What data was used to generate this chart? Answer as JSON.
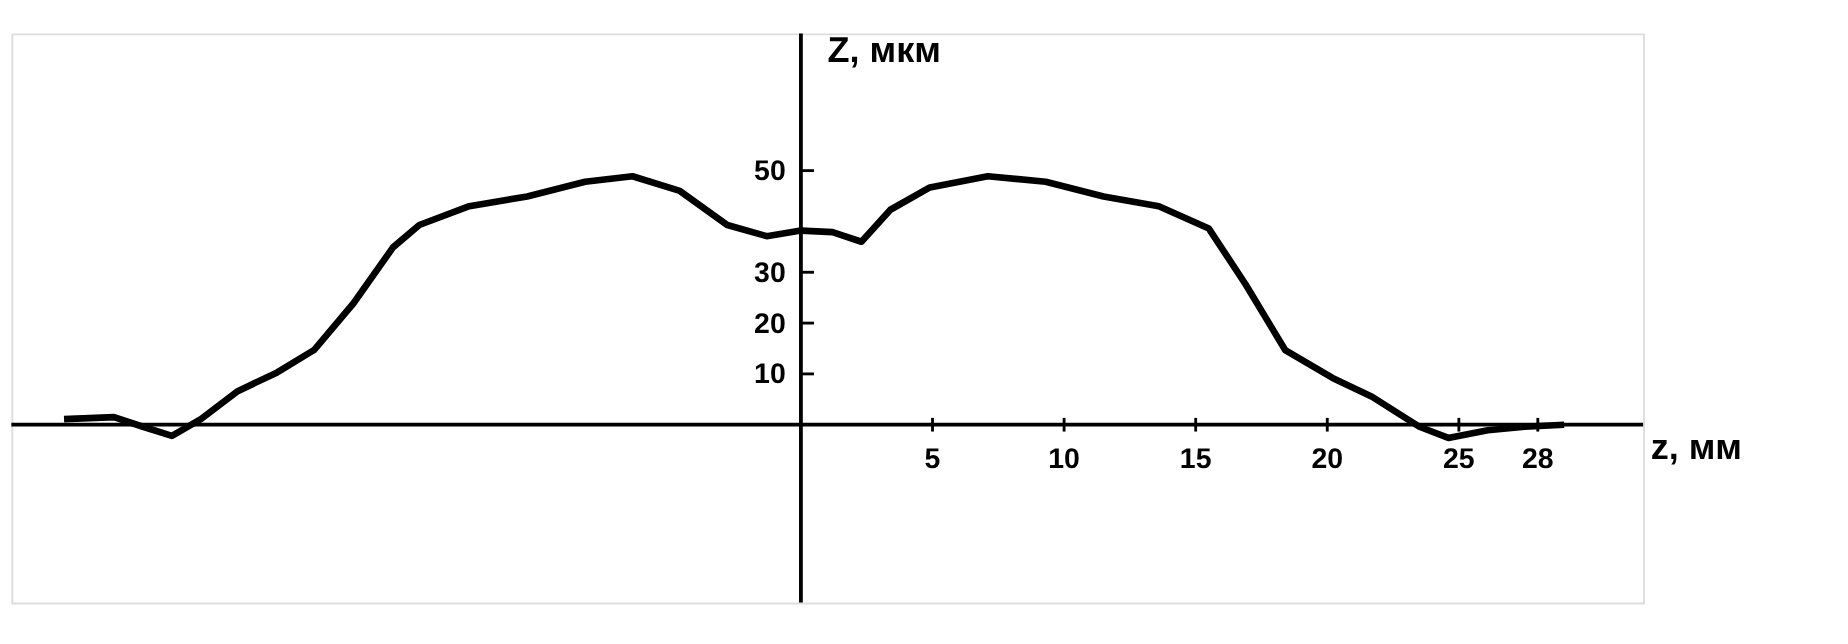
{
  "chart_data": {
    "type": "line",
    "xlabel": "z, мм",
    "ylabel": "Z, мкм",
    "xlim": [
      -30,
      32
    ],
    "ylim": [
      -35,
      77
    ],
    "xticks": [
      5,
      10,
      15,
      20,
      25,
      28
    ],
    "yticks": [
      10,
      20,
      30,
      50
    ],
    "grid": false,
    "marker": "none",
    "line_style": "solid",
    "series": [
      {
        "color": "#000000",
        "x": [
          -28.0,
          -26.1,
          -25.0,
          -23.9,
          -22.8,
          -21.4,
          -19.9,
          -18.5,
          -17.0,
          -15.5,
          -14.5,
          -12.6,
          -10.4,
          -8.2,
          -6.4,
          -4.6,
          -2.8,
          -1.3,
          0,
          1.2,
          2.3,
          3.4,
          4.9,
          7.1,
          9.3,
          11.5,
          13.6,
          15.5,
          16.9,
          18.4,
          20.2,
          21.7,
          23.5,
          24.6,
          26.1,
          27.5,
          29.0
        ],
        "values": [
          1.1,
          1.5,
          -0.4,
          -2.2,
          1.1,
          6.6,
          10.3,
          14.7,
          23.9,
          34.9,
          39.3,
          43.0,
          44.9,
          47.8,
          48.9,
          46.0,
          39.3,
          37.1,
          38.2,
          37.9,
          36.0,
          42.3,
          46.7,
          48.9,
          47.8,
          44.9,
          43.0,
          38.6,
          27.6,
          14.7,
          9.2,
          5.5,
          -0.4,
          -2.6,
          -1.1,
          -0.4,
          0
        ]
      }
    ]
  }
}
